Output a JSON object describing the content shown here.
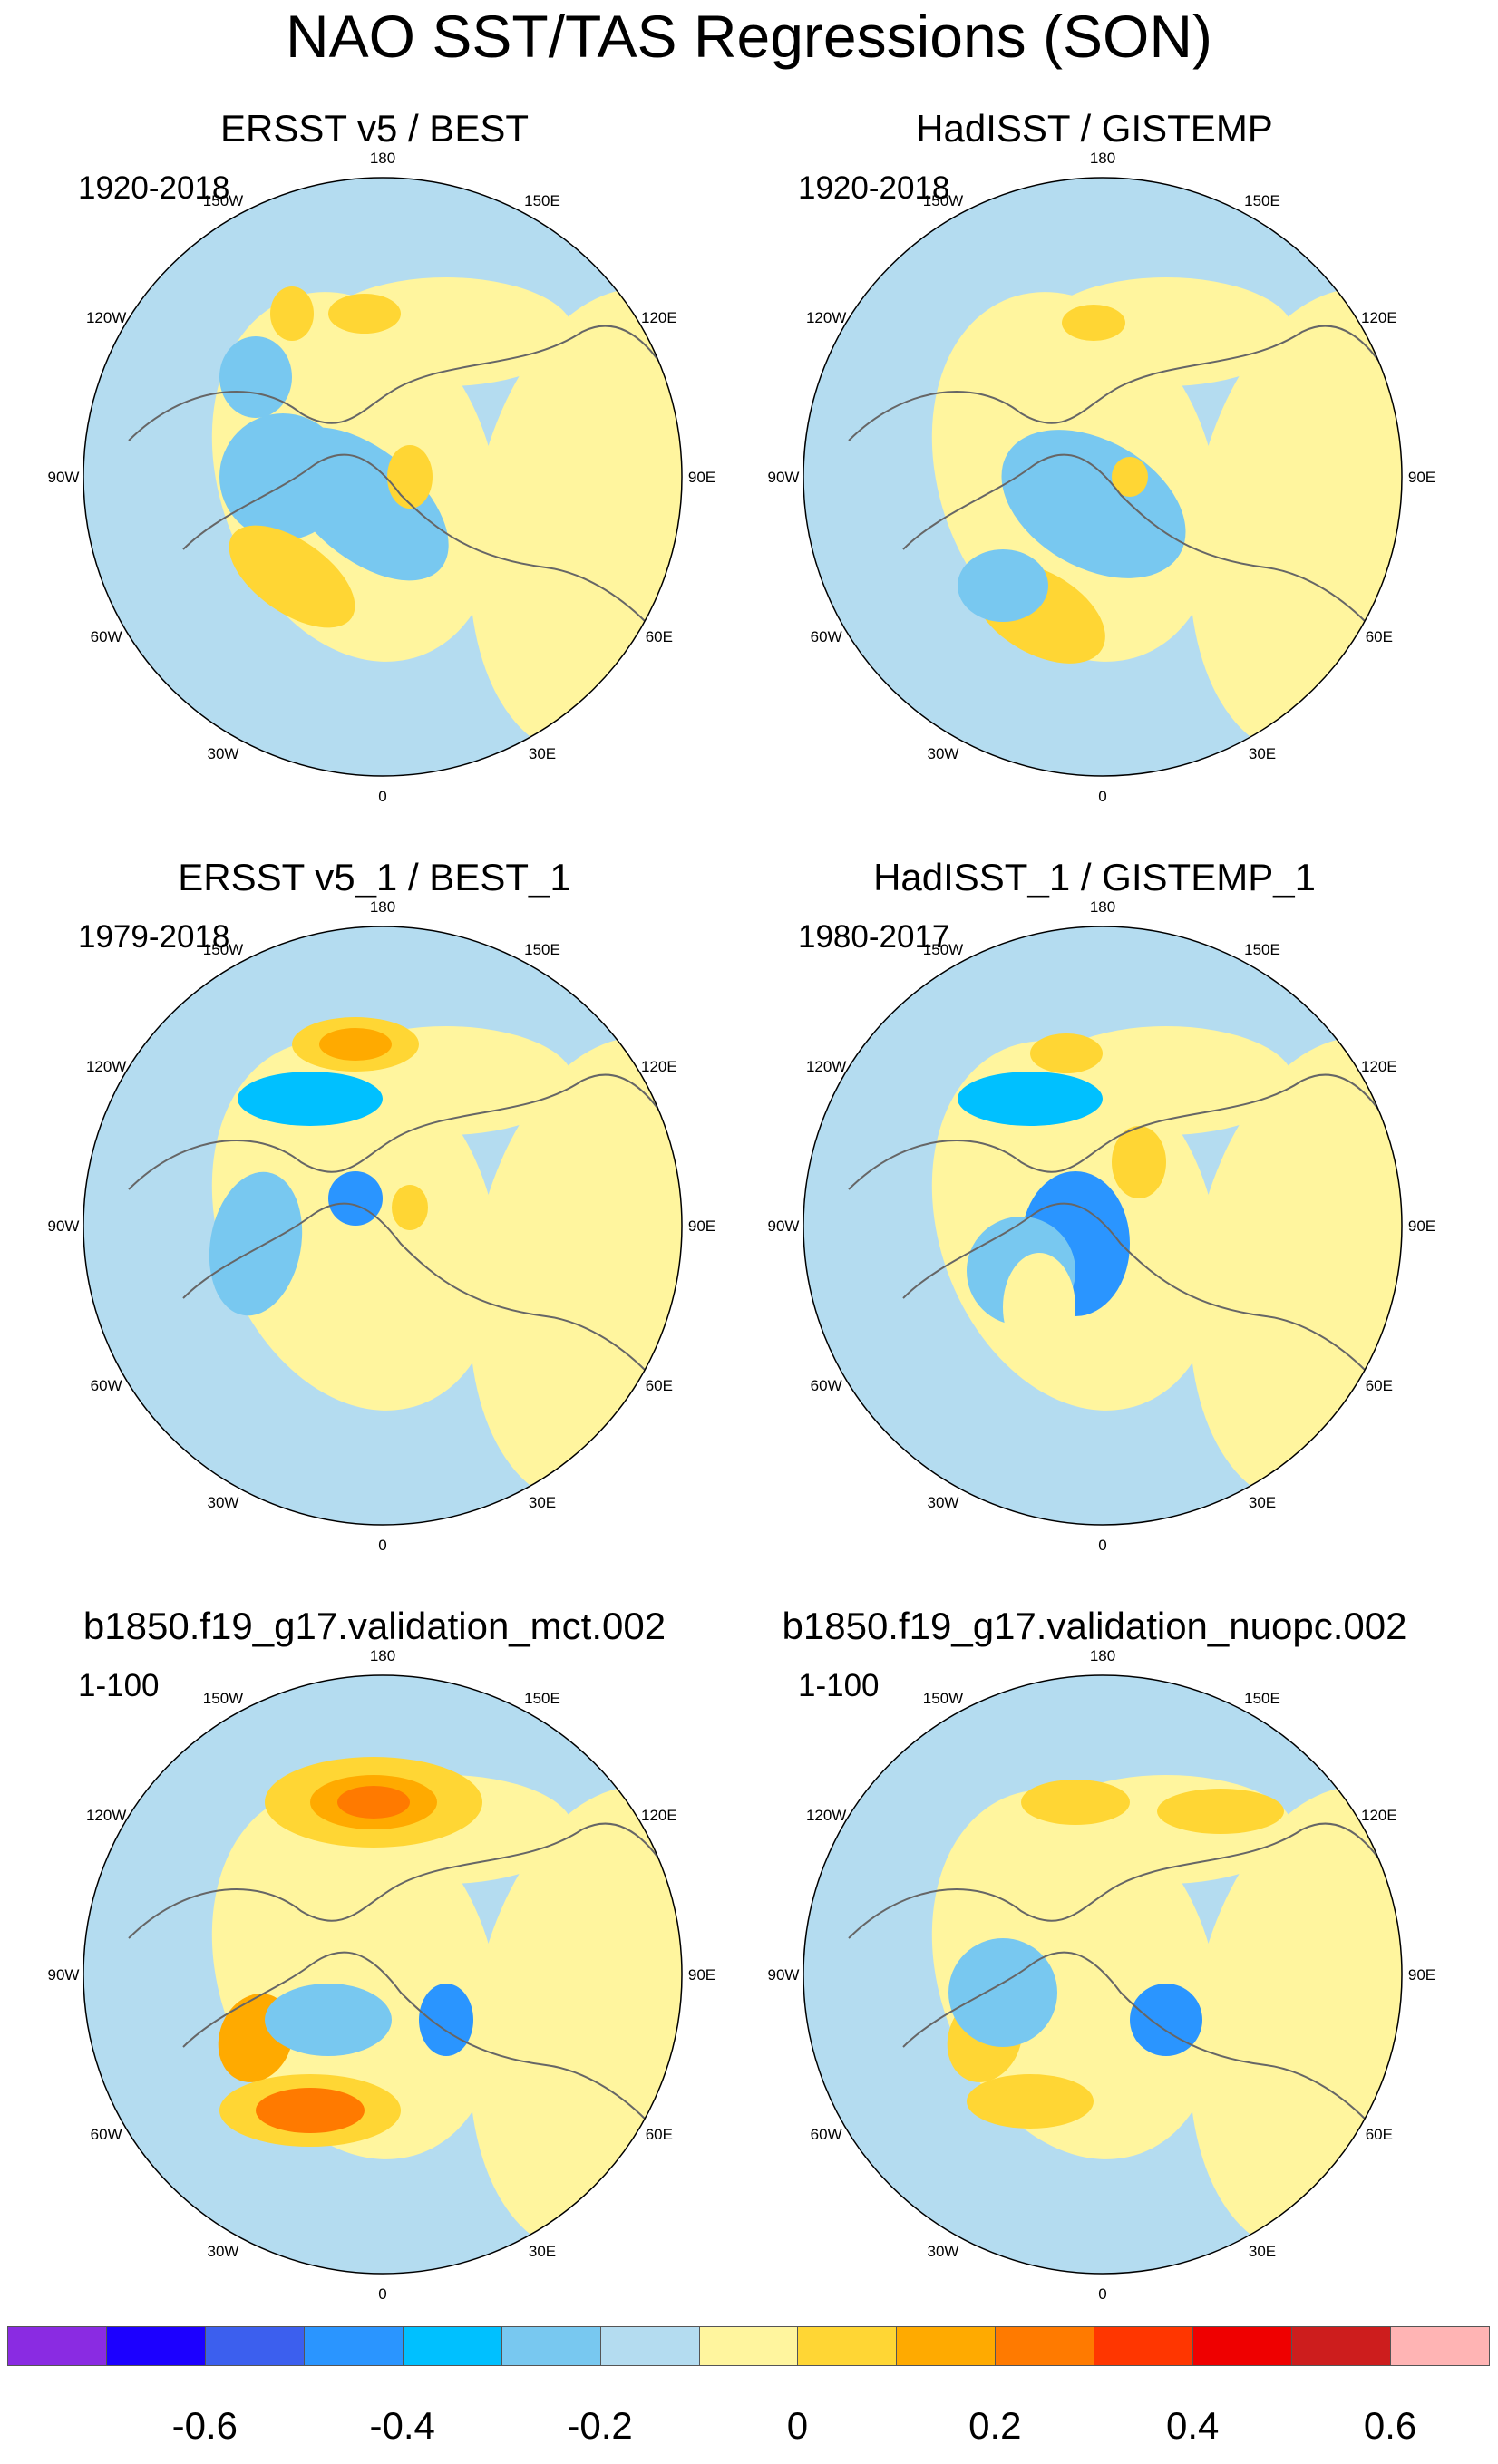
{
  "title": "NAO SST/TAS Regressions (SON)",
  "panels": [
    {
      "title": "ERSST v5 / BEST",
      "period": "1920-2018"
    },
    {
      "title": "HadISST / GISTEMP",
      "period": "1920-2018"
    },
    {
      "title": "ERSST v5_1 / BEST_1",
      "period": "1979-2018"
    },
    {
      "title": "HadISST_1 / GISTEMP_1",
      "period": "1980-2017"
    },
    {
      "title": "b1850.f19_g17.validation_mct.002",
      "period": "1-100"
    },
    {
      "title": "b1850.f19_g17.validation_nuopc.002",
      "period": "1-100"
    }
  ],
  "longitude_labels": [
    "180",
    "150E",
    "120E",
    "90E",
    "60E",
    "30E",
    "0",
    "30W",
    "60W",
    "90W",
    "120W",
    "150W"
  ],
  "colorbar": {
    "colors": [
      "#8a2be2",
      "#1c00ff",
      "#3c5fee",
      "#2a95ff",
      "#00c0ff",
      "#78c8f0",
      "#b4dcf0",
      "#fff59e",
      "#ffd634",
      "#ffaa00",
      "#ff7a00",
      "#ff3600",
      "#ef0000",
      "#cd1d1d",
      "#ffb4b4"
    ],
    "tick_labels": [
      "-0.6",
      "-0.4",
      "-0.2",
      "0",
      "0.2",
      "0.4",
      "0.6"
    ]
  }
}
